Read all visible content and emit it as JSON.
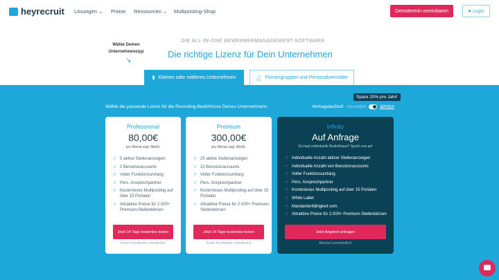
{
  "header": {
    "logo": "heyrecruit",
    "nav": [
      {
        "label": "Lösungen ⌄"
      },
      {
        "label": "Preise"
      },
      {
        "label": "Ressourcen ⌄"
      },
      {
        "label": "Multiposting-Shop"
      }
    ],
    "demo": "Demotermin vereinbaren",
    "login": "Login"
  },
  "hero": {
    "hint": "Wähle Deinen Unternehmenstyp",
    "subtitle": "DIE ALL-IN-ONE BEWERBERMANAGEMENT-SOFTWARE",
    "title": "Die richtige Lizenz für Dein Unternehmen"
  },
  "tabs": [
    {
      "label": "Kleines oder mittleres Unternehmen"
    },
    {
      "label": "Firmengruppen und Personalvermittler"
    }
  ],
  "pricing": {
    "intro": "Wähle die passende Lizenz für die Recruiting-Bedürfnisse Deines Unternehmens.",
    "term_label": "Vertragslaufzeit:",
    "monthly": "monatlich",
    "yearly": "jährlich",
    "save": "Spare 20% pro Jahr!"
  },
  "plans": [
    {
      "name": "Professional",
      "price": "80,00€",
      "note": "pro Monat zzgl. MwSt.",
      "features": [
        "5 aktive Stellenanzeigen",
        "2 Benutzeraccounts",
        "Voller Funktionsumfang",
        "Pers. Ansprechpartner",
        "Kostenloses Multiposting auf über 15 Portalen",
        "Attraktive Preise für 2.000+ Premium-Stellenbörsen"
      ],
      "cta": "Jetzt 14 Tage kostenlos testen",
      "cta_note": "Keine Kreditkarte erforderlich"
    },
    {
      "name": "Premium",
      "price": "300,00€",
      "note": "pro Monat zzgl. MwSt.",
      "features": [
        "20 aktive Stellenanzeigen",
        "10 Benutzeraccounts",
        "Voller Funktionsumfang",
        "Pers. Ansprechpartner",
        "Kostenloses Multiposting auf über 15 Portalen",
        "Attraktive Preise für 2.000+ Premium-Stellenbörsen"
      ],
      "cta": "Jetzt 14 Tage kostenlos testen",
      "cta_note": "Keine Kreditkarte erforderlich"
    },
    {
      "name": "Infinity",
      "price": "Auf Anfrage",
      "note": "Du hast individuelle Bedürfnisse? Sprich uns an!",
      "features": [
        "Individuelle Anzahl aktiver Stellenanzeigen",
        "Individuelle Anzahl von Benutzeraccounts",
        "Voller Funktionsumfang",
        "Pers. Ansprechpartner",
        "Kostenloses Multiposting auf über 15 Portalen",
        "White Label",
        "Mandantenfähigkeit uvm.",
        "Attraktive Preise für 2.000+ Premium-Stellenbörsen"
      ],
      "cta": "Jetzt Angebot anfragen",
      "cta_note": "Absolut unverbindlich"
    }
  ],
  "colors": {
    "brand": "#1ea7d9",
    "accent": "#e0285a",
    "dark": "#0b4154"
  }
}
